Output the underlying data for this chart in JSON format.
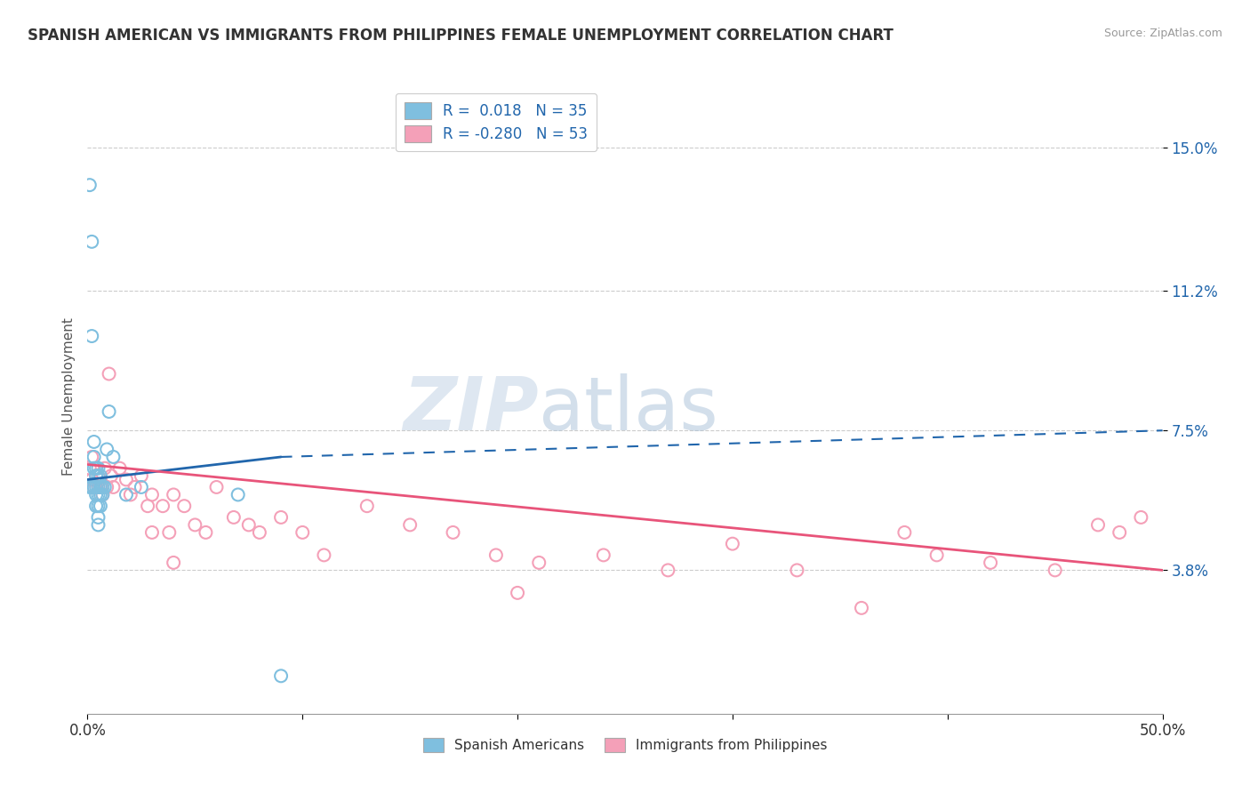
{
  "title": "SPANISH AMERICAN VS IMMIGRANTS FROM PHILIPPINES FEMALE UNEMPLOYMENT CORRELATION CHART",
  "source": "Source: ZipAtlas.com",
  "ylabel": "Female Unemployment",
  "ytick_vals": [
    0.038,
    0.075,
    0.112,
    0.15
  ],
  "ytick_labels": [
    "3.8%",
    "7.5%",
    "11.2%",
    "15.0%"
  ],
  "xmin": 0.0,
  "xmax": 0.5,
  "ymin": 0.0,
  "ymax": 0.168,
  "color_blue": "#7fbfdf",
  "color_pink": "#f4a0b8",
  "color_blue_line": "#2166ac",
  "color_pink_line": "#e8547a",
  "color_text_blue": "#2166ac",
  "color_grid": "#cccccc",
  "watermark_color": "#d0dde8",
  "spanish_x": [
    0.001,
    0.001,
    0.002,
    0.002,
    0.002,
    0.003,
    0.003,
    0.003,
    0.003,
    0.004,
    0.004,
    0.004,
    0.004,
    0.004,
    0.005,
    0.005,
    0.005,
    0.005,
    0.005,
    0.005,
    0.005,
    0.006,
    0.006,
    0.006,
    0.006,
    0.007,
    0.007,
    0.008,
    0.009,
    0.01,
    0.012,
    0.018,
    0.025,
    0.07,
    0.09
  ],
  "spanish_y": [
    0.14,
    0.06,
    0.1,
    0.125,
    0.06,
    0.065,
    0.068,
    0.072,
    0.06,
    0.063,
    0.065,
    0.06,
    0.058,
    0.055,
    0.065,
    0.063,
    0.06,
    0.058,
    0.055,
    0.052,
    0.05,
    0.063,
    0.06,
    0.058,
    0.055,
    0.06,
    0.058,
    0.06,
    0.07,
    0.08,
    0.068,
    0.058,
    0.06,
    0.058,
    0.01
  ],
  "philippines_x": [
    0.001,
    0.002,
    0.002,
    0.003,
    0.004,
    0.005,
    0.006,
    0.007,
    0.008,
    0.009,
    0.01,
    0.011,
    0.012,
    0.015,
    0.018,
    0.02,
    0.022,
    0.025,
    0.028,
    0.03,
    0.035,
    0.038,
    0.04,
    0.045,
    0.05,
    0.055,
    0.06,
    0.068,
    0.075,
    0.08,
    0.09,
    0.1,
    0.11,
    0.13,
    0.15,
    0.17,
    0.19,
    0.21,
    0.24,
    0.27,
    0.3,
    0.33,
    0.36,
    0.395,
    0.42,
    0.45,
    0.47,
    0.49,
    0.03,
    0.04,
    0.2,
    0.38,
    0.48
  ],
  "philippines_y": [
    0.065,
    0.062,
    0.068,
    0.06,
    0.063,
    0.06,
    0.062,
    0.058,
    0.065,
    0.06,
    0.09,
    0.063,
    0.06,
    0.065,
    0.062,
    0.058,
    0.06,
    0.063,
    0.055,
    0.058,
    0.055,
    0.048,
    0.058,
    0.055,
    0.05,
    0.048,
    0.06,
    0.052,
    0.05,
    0.048,
    0.052,
    0.048,
    0.042,
    0.055,
    0.05,
    0.048,
    0.042,
    0.04,
    0.042,
    0.038,
    0.045,
    0.038,
    0.028,
    0.042,
    0.04,
    0.038,
    0.05,
    0.052,
    0.048,
    0.04,
    0.032,
    0.048,
    0.048
  ]
}
